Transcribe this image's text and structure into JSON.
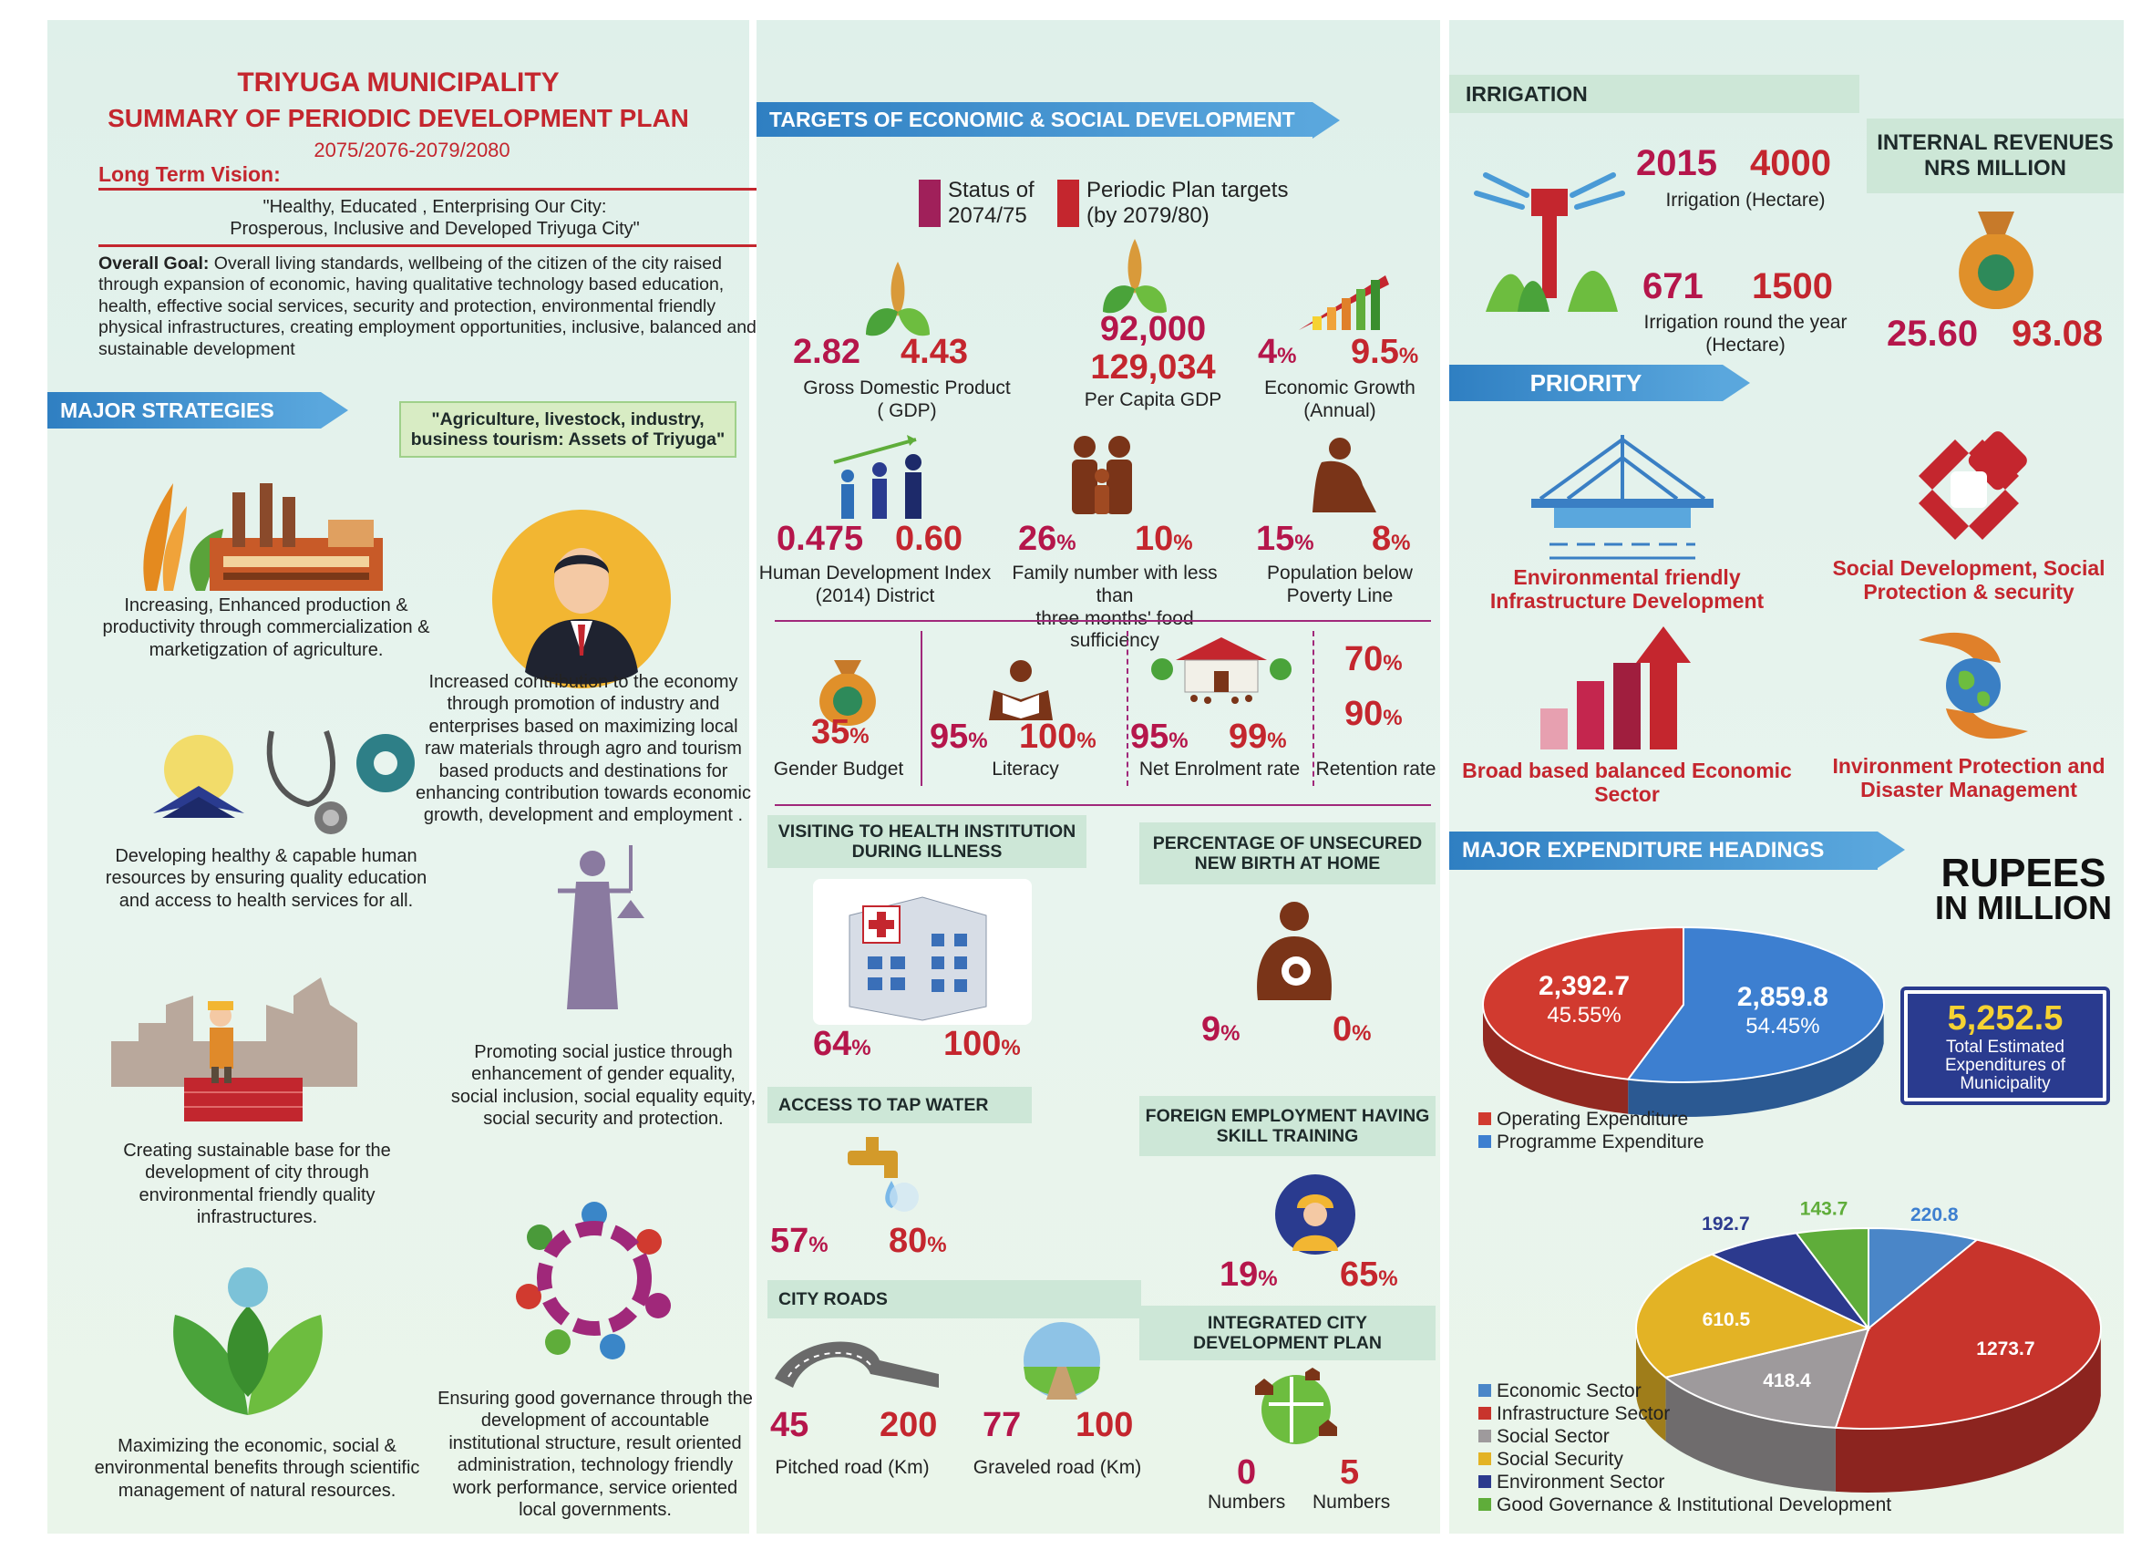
{
  "left": {
    "title": "TRIYUGA MUNICIPALITY",
    "subtitle": "SUMMARY OF PERIODIC DEVELOPMENT PLAN",
    "years": "2075/2076-2079/2080",
    "vision_label": "Long Term Vision:",
    "vision_line1": "\"Healthy, Educated , Enterprising Our City:",
    "vision_line2": "Prosperous, Inclusive and Developed Triyuga  City\"",
    "goal_label": "Overall Goal:",
    "goal_text": " Overall living standards, wellbeing of the citizen of the city raised through expansion of economic, having qualitative technology based education, health, effective social services, security and protection, environmental friendly physical infrastructures, creating employment opportunities, inclusive, balanced and sustainable development",
    "strategies_ribbon": "MAJOR STRATEGIES",
    "assets_box": "\"Agriculture, livestock, industry, business tourism: Assets of Triyuga\"",
    "s1": "Increasing, Enhanced production & productivity through commercialization & marketigzation of agriculture.",
    "s2": "Increased contribution to the economy through promotion of industry and enterprises based on maximizing local raw materials through agro and tourism based products and destinations for enhancing contribution towards economic growth, development and employment .",
    "s3": "Developing healthy & capable human resources by ensuring quality education and access to health services for all.",
    "s4": "Promoting social justice through enhancement of gender equality, social inclusion, social equality equity, social security and protection.",
    "s5": "Creating  sustainable  base for the development  of city through environmental friendly quality infrastructures.",
    "s6": "Ensuring good governance through the development of accountable institutional structure, result oriented administration, technology friendly work performance, service oriented local governments.",
    "s7": "Maximizing the economic, social & environmental  benefits  through scientific management of natural resources."
  },
  "middle": {
    "ribbon": "TARGETS OF ECONOMIC & SOCIAL DEVELOPMENT",
    "legend_status": "Status of\n2074/75",
    "legend_status_1": "Status of",
    "legend_status_2": "2074/75",
    "legend_target_1": "Periodic Plan targets",
    "legend_target_2": "(by 2079/80)",
    "gdp_a": "2.82",
    "gdp_b": "4.43",
    "gdp_label1": "Gross Domestic Product",
    "gdp_label2": "( GDP)",
    "pcgdp_a": "92,000",
    "pcgdp_b": "129,034",
    "pcgdp_label": "Per Capita GDP",
    "eg_a": "4",
    "eg_b": "9.5",
    "eg_label1": "Economic Growth",
    "eg_label2": "(Annual)",
    "hdi_a": "0.475",
    "hdi_b": "0.60",
    "hdi_label1": "Human Development Index",
    "hdi_label2": "(2014) District",
    "food_a": "26",
    "food_b": "10",
    "food_label1": "Family number with less than",
    "food_label2": "three months' food sufficiency",
    "pov_a": "15",
    "pov_b": "8",
    "pov_label1": "Population below",
    "pov_label2": "Poverty Line",
    "gb_a": "35",
    "gb_label": "Gender Budget",
    "lit_a": "95",
    "lit_b": "100",
    "lit_label": "Literacy",
    "ner_a": "95",
    "ner_b": "99",
    "ner_label": "Net Enrolment rate",
    "ret_a": "70",
    "ret_b": "90",
    "ret_label": "Retention rate",
    "pct": "%",
    "health_title": "VISITING TO HEALTH INSTITUTION DURING ILLNESS",
    "health_a": "64",
    "health_b": "100",
    "birth_title": "PERCENTAGE OF UNSECURED NEW BIRTH AT HOME",
    "birth_a": "9",
    "birth_b": "0",
    "tap_title": "ACCESS TO TAP WATER",
    "tap_a": "57",
    "tap_b": "80",
    "foreign_title": "FOREIGN EMPLOYMENT HAVING SKILL TRAINING",
    "foreign_a": "19",
    "foreign_b": "65",
    "roads_title": "CITY ROADS",
    "pitched_a": "45",
    "pitched_b": "200",
    "pitched_label": "Pitched road (Km)",
    "gravel_a": "77",
    "gravel_b": "100",
    "gravel_label": "Graveled road (Km)",
    "icdp_title": "INTEGRATED CITY DEVELOPMENT PLAN",
    "icdp_a": "0",
    "icdp_b": "5",
    "numbers": "Numbers"
  },
  "right": {
    "irrigation_title": "IRRIGATION",
    "irr_a": "2015",
    "irr_b": "4000",
    "irr_label": "Irrigation (Hectare)",
    "irr2_a": "671",
    "irr2_b": "1500",
    "irr2_label1": "Irrigation round the year",
    "irr2_label2": "(Hectare)",
    "rev_title1": "INTERNAL REVENUES",
    "rev_title2": "NRS MILLION",
    "rev_a": "25.60",
    "rev_b": "93.08",
    "priority_ribbon": "PRIORITY",
    "pr1": "Environmental friendly Infrastructure Development",
    "pr2": "Social Development, Social Protection & security",
    "pr3": "Broad based balanced Economic Sector",
    "pr4": "Invironment Protection and Disaster Management",
    "exp_ribbon": "MAJOR EXPENDITURE HEADINGS",
    "rupees1": "RUPEES",
    "rupees2": "IN MILLION",
    "total_value": "5,252.5",
    "total_label": "Total Estimated Expenditures of Municipality",
    "colors": {
      "operating": "#d13a2f",
      "programme": "#3d7fd0",
      "economic": "#4a86c8",
      "infra": "#c8342c",
      "social": "#9e9a9c",
      "security": "#e3b325",
      "env": "#2c3a8e",
      "gov": "#5fad3a"
    }
  },
  "chart_data": [
    {
      "type": "pie",
      "categories": [
        "Operating Expenditure",
        "Programme Expenditure"
      ],
      "values": [
        2392.7,
        2859.8
      ],
      "labels": [
        "2,392.7",
        "2,859.8"
      ],
      "percent_labels": [
        "45.55%",
        "54.45%"
      ]
    },
    {
      "type": "pie",
      "categories": [
        "Economic Sector",
        "Infrastructure Sector",
        "Social Sector",
        "Social Security",
        "Environment Sector",
        "Good Governance & Institutional Development"
      ],
      "values": [
        220.8,
        1273.7,
        418.4,
        610.5,
        192.7,
        143.7
      ],
      "labels": [
        "220.8",
        "1273.7",
        "418.4",
        "610.5",
        "192.7",
        "143.7"
      ]
    }
  ]
}
